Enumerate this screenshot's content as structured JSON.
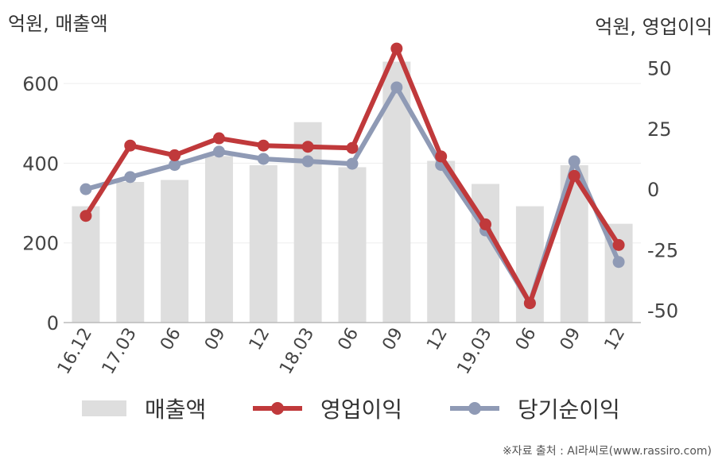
{
  "chart_data": {
    "type": "bar+line",
    "left_axis_unit": "억원, 매출액",
    "right_axis_unit": "억원, 영업이익",
    "categories": [
      "16.12",
      "17.03",
      "06",
      "09",
      "12",
      "18.03",
      "06",
      "09",
      "12",
      "19.03",
      "06",
      "09",
      "12"
    ],
    "left_ylim": [
      0,
      700
    ],
    "left_ticks": [
      "0",
      "200",
      "400",
      "600"
    ],
    "left_tick_values": [
      0,
      200,
      400,
      600
    ],
    "right_ylim": [
      -55,
      60
    ],
    "right_ticks": [
      "50",
      "25",
      "0",
      "-25",
      "-50"
    ],
    "right_tick_values": [
      50,
      25,
      0,
      -25,
      -50
    ],
    "grid": true,
    "legend_position": "bottom",
    "series": [
      {
        "name": "매출액",
        "type": "bar",
        "axis": "left",
        "color": "#dedede",
        "values": [
          292,
          353,
          358,
          418,
          395,
          503,
          390,
          655,
          406,
          348,
          292,
          395,
          248
        ]
      },
      {
        "name": "영업이익",
        "type": "line",
        "axis": "right",
        "color": "#c0393b",
        "values": [
          -11,
          18,
          14,
          21,
          18,
          17.5,
          17,
          58,
          13.5,
          -14.5,
          -47,
          5.5,
          -23
        ]
      },
      {
        "name": "당기순이익",
        "type": "line",
        "axis": "right",
        "color": "#8f9ab5",
        "values": [
          0,
          5,
          10,
          15.5,
          12.5,
          11.5,
          10.5,
          42,
          10,
          -17,
          -47,
          11.5,
          -30
        ]
      }
    ]
  },
  "source": "※자료 출처 : AI라씨로(www.rassiro.com)"
}
